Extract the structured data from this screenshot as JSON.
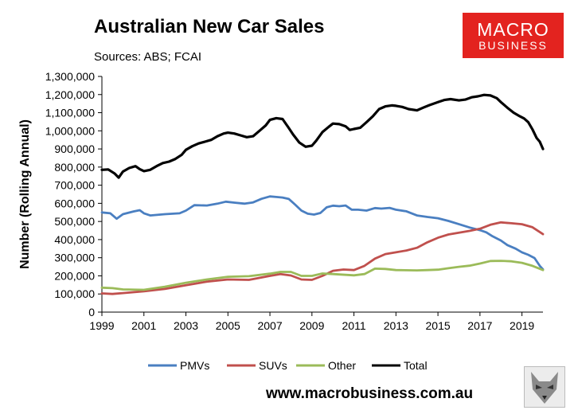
{
  "header": {
    "title": "Australian New Car Sales",
    "sources": "Sources: ABS; FCAI"
  },
  "logo": {
    "line1": "MACRO",
    "line2": "BUSINESS",
    "bg_color": "#e3231f"
  },
  "footer": {
    "url": "www.macrobusiness.com.au",
    "badge_icon": "wolf-logo-icon"
  },
  "chart_data": {
    "type": "line",
    "title": "Australian New Car Sales",
    "xlabel": "",
    "ylabel": "Number (Rolling Annual)",
    "xlim": [
      1999,
      2020
    ],
    "ylim": [
      0,
      1300000
    ],
    "x_ticks": [
      1999,
      2001,
      2003,
      2005,
      2007,
      2009,
      2011,
      2013,
      2015,
      2017,
      2019
    ],
    "x_tick_labels": [
      "1999",
      "2001",
      "2003",
      "2005",
      "2007",
      "2009",
      "2011",
      "2013",
      "2015",
      "2017",
      "2019"
    ],
    "y_ticks": [
      0,
      100000,
      200000,
      300000,
      400000,
      500000,
      600000,
      700000,
      800000,
      900000,
      1000000,
      1100000,
      1200000,
      1300000
    ],
    "y_tick_labels": [
      "0",
      "100,000",
      "200,000",
      "300,000",
      "400,000",
      "500,000",
      "600,000",
      "700,000",
      "800,000",
      "900,000",
      "1,000,000",
      "1,100,000",
      "1,200,000",
      "1,300,000"
    ],
    "grid": false,
    "legend_position": "bottom",
    "series": [
      {
        "name": "PMVs",
        "color": "#4a7fc1",
        "x": [
          1999,
          1999.4,
          1999.7,
          2000,
          2000.5,
          2000.8,
          2001,
          2001.3,
          2002,
          2002.7,
          2003,
          2003.4,
          2004,
          2004.5,
          2004.9,
          2005.3,
          2005.8,
          2006.2,
          2006.6,
          2007,
          2007.3,
          2007.6,
          2007.9,
          2008.2,
          2008.5,
          2008.8,
          2009.1,
          2009.4,
          2009.7,
          2010,
          2010.3,
          2010.6,
          2010.9,
          2011.2,
          2011.6,
          2012,
          2012.3,
          2012.7,
          2013,
          2013.5,
          2014,
          2014.5,
          2015,
          2015.5,
          2016,
          2016.5,
          2017,
          2017.3,
          2017.6,
          2018,
          2018.3,
          2018.7,
          2019,
          2019.3,
          2019.6,
          2019.85,
          2020
        ],
        "values": [
          550000,
          545000,
          515000,
          540000,
          555000,
          562000,
          545000,
          533000,
          540000,
          545000,
          560000,
          590000,
          588000,
          598000,
          609000,
          604000,
          598000,
          605000,
          625000,
          638000,
          635000,
          632000,
          624000,
          593000,
          560000,
          543000,
          538000,
          547000,
          578000,
          587000,
          584000,
          588000,
          565000,
          565000,
          560000,
          574000,
          571000,
          575000,
          565000,
          556000,
          533000,
          525000,
          518000,
          503000,
          485000,
          467000,
          452000,
          440000,
          418000,
          395000,
          370000,
          350000,
          330000,
          316000,
          298000,
          255000,
          236000
        ]
      },
      {
        "name": "SUVs",
        "color": "#c0504d",
        "x": [
          1999,
          1999.5,
          2000,
          2001,
          2002,
          2003,
          2004,
          2005,
          2006,
          2007,
          2007.5,
          2008,
          2008.5,
          2009,
          2009.5,
          2010,
          2010.5,
          2011,
          2011.5,
          2012,
          2012.5,
          2013,
          2013.5,
          2014,
          2014.5,
          2015,
          2015.5,
          2016,
          2016.5,
          2017,
          2017.5,
          2018,
          2018.5,
          2019,
          2019.5,
          2020
        ],
        "values": [
          103000,
          100000,
          105000,
          115000,
          128000,
          148000,
          168000,
          180000,
          178000,
          200000,
          210000,
          202000,
          180000,
          178000,
          200000,
          228000,
          235000,
          232000,
          255000,
          295000,
          320000,
          330000,
          340000,
          355000,
          385000,
          410000,
          428000,
          438000,
          448000,
          460000,
          482000,
          495000,
          490000,
          485000,
          468000,
          430000
        ]
      },
      {
        "name": "Other",
        "color": "#9bbb59",
        "x": [
          1999,
          1999.5,
          2000,
          2001,
          2002,
          2003,
          2004,
          2005,
          2006,
          2007,
          2007.5,
          2008,
          2008.5,
          2009,
          2009.5,
          2010,
          2011,
          2011.5,
          2012,
          2012.5,
          2013,
          2014,
          2014.5,
          2015,
          2015.5,
          2016,
          2016.5,
          2017,
          2017.5,
          2018,
          2018.5,
          2019,
          2019.5,
          2020
        ],
        "values": [
          135000,
          132000,
          125000,
          123000,
          140000,
          162000,
          180000,
          195000,
          198000,
          212000,
          222000,
          222000,
          200000,
          200000,
          213000,
          210000,
          203000,
          210000,
          240000,
          238000,
          232000,
          230000,
          232000,
          234000,
          242000,
          250000,
          256000,
          268000,
          282000,
          283000,
          280000,
          272000,
          255000,
          232000
        ]
      },
      {
        "name": "Total",
        "color": "#000000",
        "x": [
          1999,
          1999.3,
          1999.6,
          1999.8,
          2000,
          2000.3,
          2000.6,
          2000.8,
          2001,
          2001.3,
          2001.6,
          2001.9,
          2002.2,
          2002.5,
          2002.8,
          2003,
          2003.3,
          2003.6,
          2003.9,
          2004.2,
          2004.5,
          2004.8,
          2005,
          2005.3,
          2005.6,
          2005.9,
          2006.2,
          2006.5,
          2006.8,
          2007,
          2007.3,
          2007.6,
          2007.9,
          2008.1,
          2008.4,
          2008.7,
          2009,
          2009.2,
          2009.5,
          2009.8,
          2010,
          2010.3,
          2010.6,
          2010.8,
          2011,
          2011.3,
          2011.6,
          2011.9,
          2012.2,
          2012.5,
          2012.8,
          2013,
          2013.3,
          2013.6,
          2014,
          2014.3,
          2014.6,
          2015,
          2015.3,
          2015.6,
          2016,
          2016.3,
          2016.6,
          2016.9,
          2017.2,
          2017.5,
          2017.8,
          2018,
          2018.3,
          2018.6,
          2018.9,
          2019.1,
          2019.3,
          2019.5,
          2019.7,
          2019.85,
          2020
        ],
        "values": [
          785000,
          787000,
          765000,
          742000,
          775000,
          795000,
          805000,
          789000,
          778000,
          785000,
          805000,
          822000,
          830000,
          845000,
          868000,
          895000,
          915000,
          930000,
          940000,
          950000,
          970000,
          985000,
          990000,
          985000,
          975000,
          965000,
          970000,
          1000000,
          1030000,
          1060000,
          1070000,
          1065000,
          1015000,
          980000,
          935000,
          912000,
          918000,
          945000,
          993000,
          1022000,
          1040000,
          1037000,
          1025000,
          1005000,
          1010000,
          1017000,
          1048000,
          1080000,
          1120000,
          1135000,
          1140000,
          1138000,
          1132000,
          1120000,
          1113000,
          1128000,
          1142000,
          1158000,
          1170000,
          1175000,
          1168000,
          1172000,
          1185000,
          1190000,
          1198000,
          1195000,
          1180000,
          1158000,
          1128000,
          1100000,
          1080000,
          1068000,
          1048000,
          1008000,
          960000,
          940000,
          900000
        ]
      }
    ]
  }
}
